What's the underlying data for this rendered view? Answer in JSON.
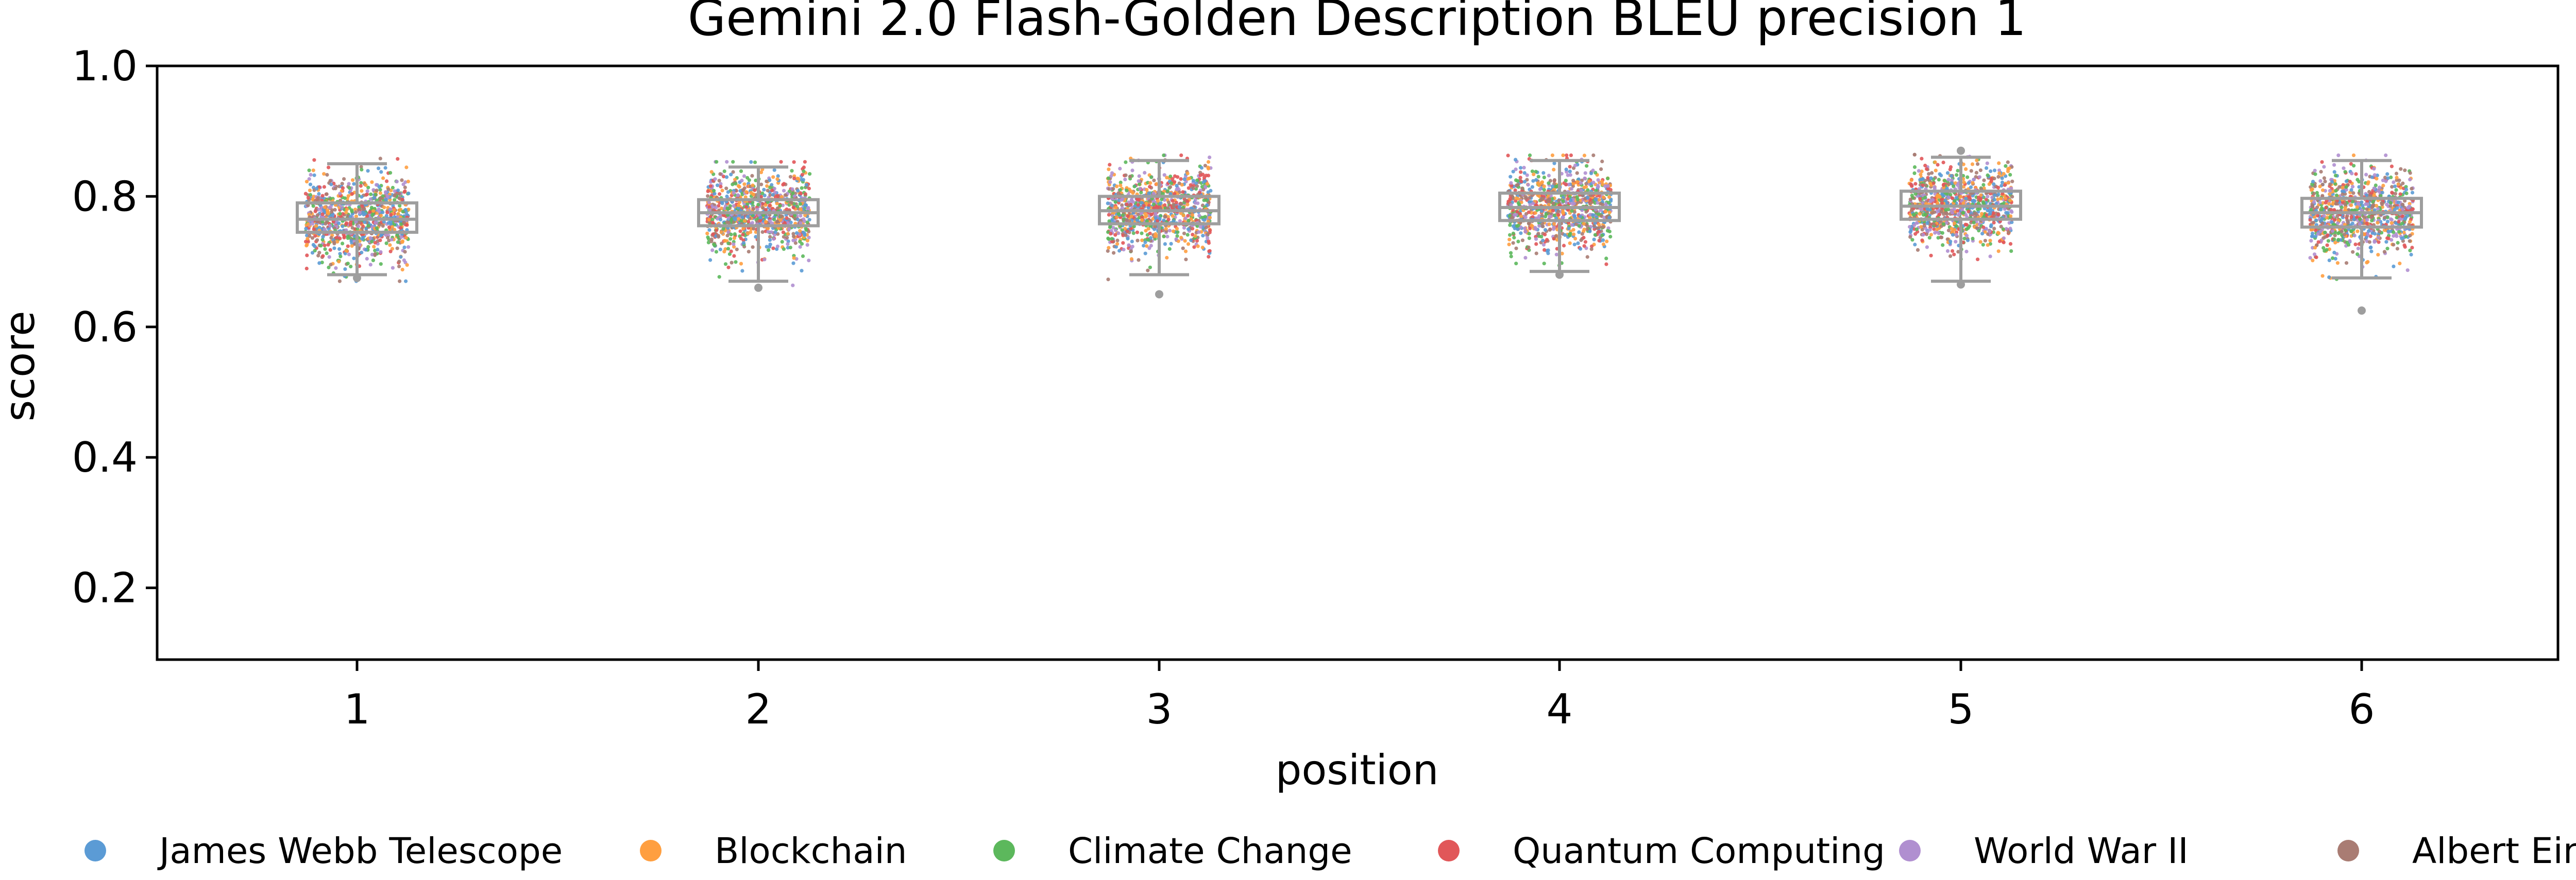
{
  "chart_data": {
    "type": "scatter",
    "title": "Gemini 2.0 Flash-Golden Description BLEU precision 1",
    "xlabel": "position",
    "ylabel": "score",
    "categories": [
      "1",
      "2",
      "3",
      "4",
      "5",
      "6"
    ],
    "ylim": [
      0.09,
      1.0
    ],
    "yticks": [
      0.2,
      0.4,
      0.6,
      0.8,
      1.0
    ],
    "ytick_labels": [
      "0.2",
      "0.4",
      "0.6",
      "0.8",
      "1.0"
    ],
    "grid": false,
    "legend_position": "bottom",
    "series": [
      {
        "name": "James Webb Telescope",
        "color": "#5b9bd5"
      },
      {
        "name": "Blockchain",
        "color": "#ff9f40"
      },
      {
        "name": "Climate Change",
        "color": "#5cb85c"
      },
      {
        "name": "Quantum Computing",
        "color": "#e15759"
      },
      {
        "name": "World War II",
        "color": "#b08fd0"
      },
      {
        "name": "Albert Einstein",
        "color": "#a97c73"
      }
    ],
    "boxes": [
      {
        "position": "1",
        "whislo": 0.68,
        "q1": 0.745,
        "med": 0.765,
        "q3": 0.79,
        "whishi": 0.85,
        "fliers": [
          0.675
        ]
      },
      {
        "position": "2",
        "whislo": 0.67,
        "q1": 0.755,
        "med": 0.775,
        "q3": 0.795,
        "whishi": 0.845,
        "fliers": [
          0.66
        ]
      },
      {
        "position": "3",
        "whislo": 0.68,
        "q1": 0.758,
        "med": 0.778,
        "q3": 0.8,
        "whishi": 0.855,
        "fliers": [
          0.65
        ]
      },
      {
        "position": "4",
        "whislo": 0.685,
        "q1": 0.763,
        "med": 0.783,
        "q3": 0.805,
        "whishi": 0.855,
        "fliers": [
          0.68
        ]
      },
      {
        "position": "5",
        "whislo": 0.67,
        "q1": 0.765,
        "med": 0.785,
        "q3": 0.808,
        "whishi": 0.86,
        "fliers": [
          0.665,
          0.87
        ]
      },
      {
        "position": "6",
        "whislo": 0.675,
        "q1": 0.753,
        "med": 0.775,
        "q3": 0.797,
        "whishi": 0.855,
        "fliers": [
          0.625
        ]
      }
    ],
    "colors": {
      "box": "#9e9e9e",
      "axis": "#000000"
    }
  }
}
